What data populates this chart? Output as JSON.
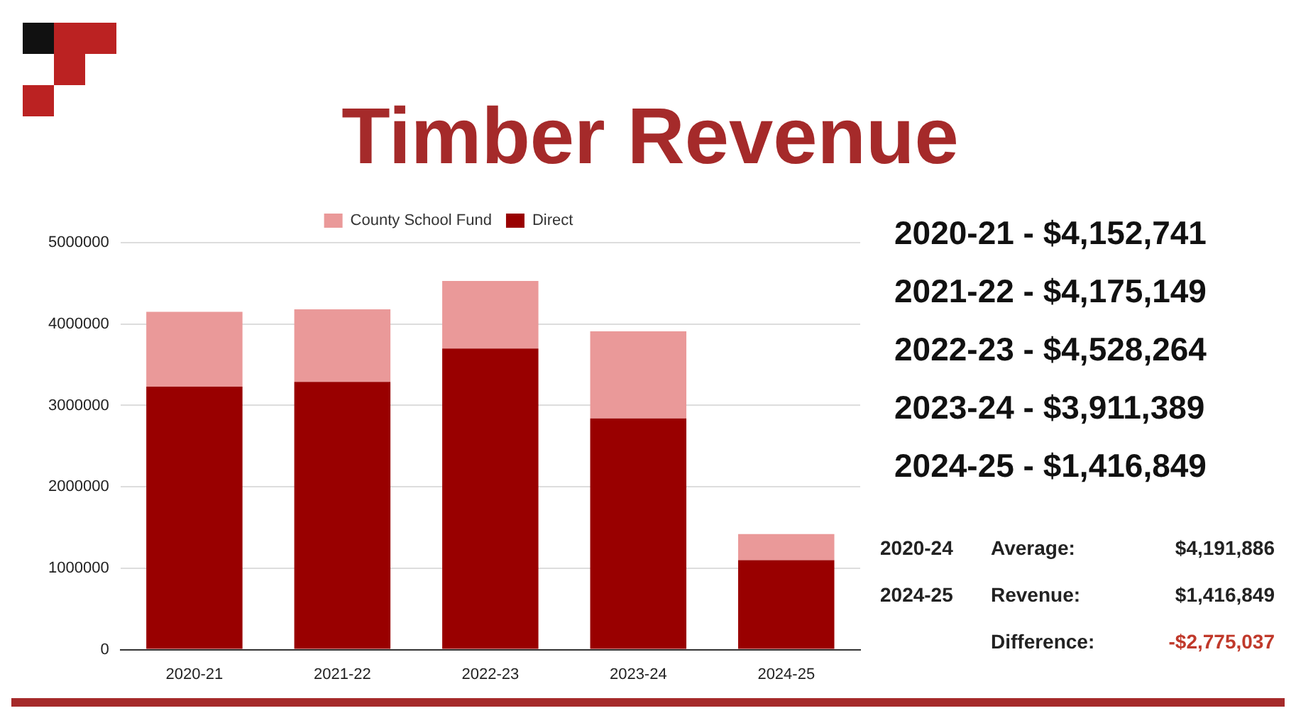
{
  "chart_data": {
    "type": "bar",
    "title": "Timber Revenue",
    "categories": [
      "2020-21",
      "2021-22",
      "2022-23",
      "2023-24",
      "2024-25"
    ],
    "series": [
      {
        "name": "Direct",
        "color": "#990000",
        "values": [
          3230000,
          3290000,
          3700000,
          2840000,
          1100000
        ]
      },
      {
        "name": "County School Fund",
        "color": "#ea9999",
        "values": [
          920000,
          890000,
          830000,
          1070000,
          320000
        ]
      }
    ],
    "stacked": true,
    "ylim": [
      0,
      5000000
    ],
    "yticks": [
      0,
      1000000,
      2000000,
      3000000,
      4000000,
      5000000
    ],
    "grid": "y",
    "legend": "top",
    "annotations": [
      "2020-21 - $4,152,741",
      "2021-22 - $4,175,149",
      "2022-23 - $4,528,264",
      "2023-24 - $3,911,389",
      "2024-25 - $1,416,849",
      "2020-24",
      "Average:",
      "$4,191,886",
      "2024-25",
      "Revenue:",
      "$1,416,849",
      "Difference:",
      "-$2,775,037"
    ]
  }
}
